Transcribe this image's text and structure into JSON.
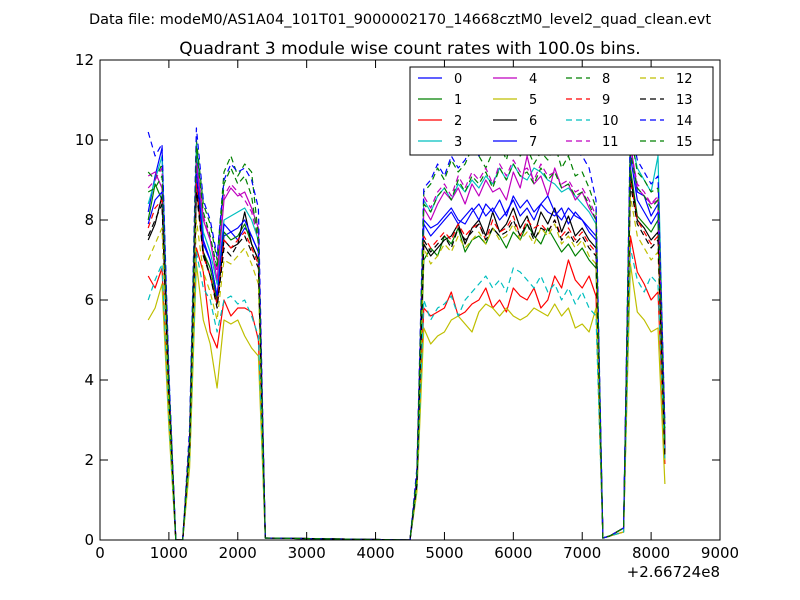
{
  "header": {
    "datafile": "Data file: modeM0/AS1A04_101T01_9000002170_14668cztM0_level2_quad_clean.evt"
  },
  "chart_data": {
    "type": "line",
    "title": "Quadrant 3 module wise count rates with 100.0s bins.",
    "xlabel": "",
    "ylabel": "",
    "x_offset_label": "+2.66724e8",
    "xlim": [
      0,
      9000
    ],
    "ylim": [
      0,
      12
    ],
    "xticks": [
      0,
      1000,
      2000,
      3000,
      4000,
      5000,
      6000,
      7000,
      8000,
      9000
    ],
    "yticks": [
      0,
      2,
      4,
      6,
      8,
      10,
      12
    ],
    "grid": false,
    "legend_position": "top-right",
    "x": [
      700,
      800,
      900,
      1000,
      1100,
      1200,
      1300,
      1400,
      1500,
      1600,
      1700,
      1800,
      1900,
      2000,
      2100,
      2200,
      2300,
      2400,
      4500,
      4600,
      4700,
      4800,
      4900,
      5000,
      5100,
      5200,
      5300,
      5400,
      5500,
      5600,
      5700,
      5800,
      5900,
      6000,
      6100,
      6200,
      6300,
      6400,
      6500,
      6600,
      6700,
      6800,
      6900,
      7000,
      7100,
      7200,
      7300,
      7400,
      7600,
      7700,
      7800,
      7900,
      8000,
      8100,
      8200
    ],
    "series": [
      {
        "name": "0",
        "color": "#0000ff",
        "dashed": false,
        "values": [
          8.2,
          9.1,
          9.8,
          4.0,
          0,
          0,
          2.5,
          9.7,
          7.5,
          7.0,
          6.1,
          7.6,
          7.7,
          7.5,
          7.8,
          7.6,
          7.2,
          0.05,
          0,
          1.5,
          8.0,
          7.8,
          7.9,
          8.1,
          8.3,
          8.0,
          7.9,
          8.2,
          8.4,
          8.1,
          8.3,
          8.0,
          8.2,
          8.5,
          8.1,
          8.3,
          8.0,
          8.4,
          8.2,
          8.1,
          8.3,
          7.9,
          8.2,
          8.0,
          7.8,
          7.6,
          0.05,
          0.1,
          0.3,
          9.9,
          8.7,
          8.6,
          8.1,
          8.4,
          2.5
        ]
      },
      {
        "name": "1",
        "color": "#008000",
        "dashed": false,
        "values": [
          8.0,
          8.9,
          8.5,
          3.6,
          0,
          0,
          2.4,
          8.8,
          7.2,
          6.8,
          6.0,
          7.7,
          7.5,
          7.6,
          7.9,
          7.4,
          7.0,
          0.05,
          0,
          1.4,
          7.0,
          7.3,
          7.1,
          7.6,
          7.4,
          7.8,
          7.2,
          7.5,
          7.6,
          7.4,
          7.8,
          7.6,
          7.3,
          7.7,
          7.5,
          7.9,
          7.6,
          7.4,
          7.8,
          7.5,
          7.2,
          7.4,
          7.1,
          7.3,
          7.0,
          6.8,
          0.05,
          0.1,
          0.3,
          9.3,
          8.1,
          7.9,
          7.7,
          8.0,
          2.2
        ]
      },
      {
        "name": "2",
        "color": "#ff0000",
        "dashed": false,
        "values": [
          6.6,
          6.3,
          6.8,
          3.0,
          0,
          0,
          2.0,
          7.3,
          6.7,
          5.2,
          4.8,
          6.0,
          5.6,
          5.8,
          5.8,
          5.7,
          5.0,
          0.05,
          0,
          1.3,
          5.8,
          5.6,
          5.7,
          5.8,
          6.2,
          5.6,
          5.7,
          5.9,
          6.0,
          6.3,
          5.8,
          6.0,
          5.7,
          6.3,
          6.1,
          6.0,
          6.3,
          5.8,
          6.0,
          6.6,
          6.3,
          7.0,
          6.5,
          6.3,
          6.6,
          6.1,
          0.05,
          0.1,
          0.2,
          7.6,
          6.7,
          6.4,
          6.0,
          6.2,
          1.9
        ]
      },
      {
        "name": "3",
        "color": "#00bfbf",
        "dashed": false,
        "values": [
          8.4,
          9.0,
          9.6,
          4.1,
          0,
          0,
          2.6,
          9.9,
          7.7,
          7.2,
          6.4,
          8.0,
          8.1,
          8.2,
          8.3,
          8.0,
          7.5,
          0.05,
          0,
          1.6,
          8.5,
          8.2,
          8.6,
          8.8,
          8.5,
          8.9,
          8.7,
          9.0,
          8.8,
          9.1,
          8.9,
          9.3,
          9.0,
          9.4,
          9.1,
          9.0,
          9.3,
          9.2,
          9.0,
          8.9,
          8.7,
          8.8,
          8.6,
          8.4,
          8.2,
          7.9,
          0.05,
          0.1,
          0.3,
          10.1,
          9.3,
          9.0,
          8.7,
          9.6,
          2.6
        ]
      },
      {
        "name": "4",
        "color": "#bf00bf",
        "dashed": false,
        "values": [
          9.1,
          9.2,
          8.8,
          3.9,
          0,
          0,
          2.5,
          9.4,
          8.0,
          7.5,
          6.5,
          8.5,
          8.8,
          8.6,
          8.7,
          8.3,
          7.8,
          0.05,
          0,
          1.6,
          8.3,
          8.0,
          8.4,
          8.7,
          8.5,
          8.8,
          8.4,
          8.9,
          8.6,
          9.0,
          8.7,
          8.8,
          8.5,
          9.2,
          8.8,
          9.6,
          8.9,
          9.1,
          8.6,
          9.3,
          8.8,
          8.9,
          8.5,
          8.7,
          8.3,
          8.0,
          0.05,
          0.1,
          0.3,
          9.9,
          8.8,
          8.6,
          8.4,
          8.5,
          2.4
        ]
      },
      {
        "name": "5",
        "color": "#bfbf00",
        "dashed": false,
        "values": [
          5.5,
          5.8,
          6.4,
          2.8,
          0,
          0,
          1.8,
          6.9,
          5.5,
          4.9,
          3.8,
          5.5,
          5.4,
          5.5,
          5.1,
          4.8,
          4.6,
          0.05,
          0,
          1.2,
          5.3,
          4.9,
          5.1,
          5.2,
          5.5,
          5.6,
          5.4,
          5.2,
          5.7,
          5.9,
          5.8,
          5.6,
          5.8,
          5.6,
          5.5,
          5.6,
          5.8,
          5.7,
          5.6,
          5.9,
          5.6,
          5.8,
          5.3,
          5.4,
          5.2,
          5.8,
          0.05,
          0.1,
          0.2,
          6.9,
          5.7,
          5.5,
          5.2,
          5.3,
          1.4
        ]
      },
      {
        "name": "6",
        "color": "#000000",
        "dashed": false,
        "values": [
          7.5,
          7.9,
          8.6,
          3.6,
          0,
          0,
          2.3,
          9.0,
          7.2,
          6.6,
          5.9,
          7.5,
          7.3,
          7.4,
          8.2,
          7.4,
          7.0,
          0.05,
          0,
          1.4,
          7.4,
          7.1,
          7.3,
          7.5,
          7.6,
          7.9,
          7.4,
          7.8,
          8.0,
          7.6,
          8.2,
          7.7,
          7.9,
          8.3,
          7.8,
          8.1,
          7.6,
          8.2,
          7.9,
          8.3,
          7.7,
          8.1,
          7.6,
          7.8,
          7.5,
          7.3,
          0.05,
          0.1,
          0.3,
          9.1,
          8.0,
          7.8,
          7.5,
          7.7,
          2.2
        ]
      },
      {
        "name": "7",
        "color": "#0000ff",
        "dashed": false,
        "values": [
          7.9,
          8.5,
          8.7,
          3.8,
          0,
          0,
          2.4,
          9.2,
          7.4,
          7.0,
          6.1,
          7.9,
          7.7,
          7.8,
          8.0,
          7.6,
          7.2,
          0.05,
          0,
          1.5,
          7.9,
          7.6,
          7.8,
          8.0,
          8.2,
          7.9,
          8.1,
          8.3,
          8.0,
          8.4,
          8.2,
          8.5,
          8.1,
          8.6,
          8.3,
          8.5,
          8.2,
          8.4,
          8.6,
          8.2,
          8.0,
          8.3,
          8.1,
          8.0,
          7.7,
          7.5,
          0.05,
          0.1,
          0.3,
          9.6,
          8.5,
          8.2,
          7.9,
          8.2,
          2.3
        ]
      },
      {
        "name": "8",
        "color": "#008000",
        "dashed": true,
        "values": [
          9.2,
          9.0,
          9.4,
          4.0,
          0,
          0,
          2.6,
          10.0,
          8.4,
          7.9,
          7.0,
          9.2,
          9.6,
          9.1,
          9.4,
          9.2,
          7.6,
          0.05,
          0,
          1.7,
          8.7,
          8.9,
          9.3,
          9.0,
          9.5,
          9.2,
          9.4,
          9.8,
          9.6,
          9.3,
          9.7,
          9.9,
          9.5,
          10.2,
          9.6,
          9.8,
          9.4,
          9.7,
          9.5,
          9.9,
          9.3,
          9.6,
          9.1,
          9.2,
          8.8,
          8.3,
          0.05,
          0.1,
          0.3,
          10.2,
          9.2,
          9.0,
          8.7,
          8.8,
          2.8
        ]
      },
      {
        "name": "9",
        "color": "#ff0000",
        "dashed": true,
        "values": [
          7.8,
          8.3,
          8.5,
          3.7,
          0,
          0,
          2.3,
          8.9,
          7.1,
          6.6,
          5.9,
          7.5,
          7.3,
          7.5,
          7.7,
          7.3,
          6.9,
          0.05,
          0,
          1.4,
          7.6,
          7.3,
          7.5,
          7.7,
          7.5,
          7.9,
          7.6,
          7.8,
          7.9,
          7.5,
          8.0,
          7.7,
          7.8,
          8.1,
          7.6,
          8.0,
          7.8,
          7.9,
          7.7,
          8.0,
          7.6,
          7.8,
          7.5,
          7.7,
          7.4,
          7.2,
          0.05,
          0.1,
          0.3,
          9.0,
          8.0,
          7.7,
          7.4,
          7.6,
          2.2
        ]
      },
      {
        "name": "10",
        "color": "#00bfbf",
        "dashed": true,
        "values": [
          6.0,
          6.5,
          6.9,
          3.0,
          0,
          0,
          2.0,
          7.2,
          6.3,
          6.0,
          5.2,
          6.0,
          6.1,
          5.9,
          6.0,
          5.6,
          5.1,
          0.05,
          0,
          1.3,
          6.0,
          5.5,
          5.8,
          5.9,
          6.1,
          5.6,
          6.0,
          6.2,
          6.4,
          6.6,
          6.3,
          6.5,
          6.2,
          6.8,
          6.7,
          6.5,
          6.3,
          6.6,
          6.2,
          6.4,
          6.0,
          6.3,
          5.9,
          6.2,
          5.8,
          5.6,
          0.05,
          0.1,
          0.2,
          7.3,
          6.5,
          6.2,
          6.6,
          6.4,
          2.0
        ]
      },
      {
        "name": "11",
        "color": "#bf00bf",
        "dashed": true,
        "values": [
          8.8,
          9.0,
          9.3,
          4.0,
          0,
          0,
          2.6,
          9.5,
          8.1,
          7.5,
          6.7,
          8.6,
          8.9,
          8.7,
          8.5,
          8.2,
          7.5,
          0.05,
          0,
          1.6,
          8.6,
          8.3,
          8.7,
          8.9,
          8.6,
          9.1,
          8.8,
          9.2,
          9.0,
          9.3,
          8.9,
          9.4,
          9.1,
          9.5,
          9.2,
          9.3,
          9.0,
          9.4,
          9.1,
          9.2,
          8.9,
          9.0,
          8.7,
          8.8,
          8.5,
          8.1,
          0.05,
          0.1,
          0.3,
          9.8,
          8.9,
          8.7,
          8.4,
          8.6,
          2.5
        ]
      },
      {
        "name": "12",
        "color": "#bfbf00",
        "dashed": true,
        "values": [
          7.0,
          7.4,
          7.8,
          3.3,
          0,
          0,
          2.1,
          8.0,
          6.7,
          6.2,
          5.5,
          7.0,
          6.9,
          7.1,
          7.3,
          6.9,
          6.4,
          0.05,
          0,
          1.4,
          7.3,
          6.9,
          7.1,
          7.4,
          7.2,
          7.6,
          7.3,
          7.5,
          7.7,
          7.4,
          7.8,
          7.5,
          7.6,
          7.9,
          7.5,
          7.7,
          7.4,
          7.8,
          7.6,
          7.9,
          7.4,
          7.6,
          7.3,
          7.5,
          7.1,
          6.9,
          0.05,
          0.1,
          0.3,
          8.6,
          7.6,
          7.3,
          7.0,
          7.2,
          2.0
        ]
      },
      {
        "name": "13",
        "color": "#000000",
        "dashed": true,
        "values": [
          7.6,
          8.0,
          8.4,
          3.6,
          0,
          0,
          2.3,
          8.7,
          7.1,
          6.6,
          5.8,
          7.3,
          7.1,
          7.4,
          7.6,
          7.2,
          6.8,
          0.05,
          0,
          1.4,
          7.5,
          7.2,
          7.4,
          7.6,
          7.3,
          7.8,
          7.5,
          7.7,
          7.9,
          7.5,
          7.8,
          7.6,
          7.7,
          8.0,
          7.6,
          7.9,
          7.5,
          7.8,
          7.7,
          8.0,
          7.5,
          7.7,
          7.4,
          7.6,
          7.3,
          7.1,
          0.05,
          0.1,
          0.3,
          8.9,
          7.9,
          7.6,
          7.3,
          7.5,
          2.1
        ]
      },
      {
        "name": "14",
        "color": "#0000ff",
        "dashed": true,
        "values": [
          10.2,
          9.6,
          9.9,
          4.2,
          0,
          0,
          2.8,
          10.3,
          8.5,
          8.0,
          7.1,
          9.0,
          9.4,
          9.2,
          9.3,
          9.0,
          8.3,
          0.05,
          0,
          1.8,
          8.8,
          9.0,
          9.4,
          9.1,
          9.6,
          9.3,
          9.5,
          9.9,
          9.6,
          9.8,
          10.0,
          9.7,
          10.1,
          9.9,
          10.2,
          9.8,
          10.4,
          10.0,
          10.3,
          10.7,
          10.1,
          9.9,
          9.7,
          9.6,
          9.3,
          8.5,
          0.05,
          0.1,
          0.3,
          10.4,
          9.5,
          9.2,
          8.9,
          9.1,
          2.9
        ]
      },
      {
        "name": "15",
        "color": "#008000",
        "dashed": true,
        "values": [
          8.7,
          8.8,
          9.1,
          3.9,
          0,
          0,
          2.5,
          9.8,
          8.2,
          7.6,
          6.8,
          8.9,
          9.3,
          8.9,
          9.1,
          8.6,
          7.4,
          0.05,
          0,
          1.6,
          8.4,
          8.2,
          8.6,
          8.8,
          8.5,
          9.0,
          8.7,
          9.1,
          8.9,
          9.2,
          8.8,
          9.3,
          9.0,
          9.4,
          9.1,
          9.2,
          8.9,
          9.3,
          9.0,
          9.2,
          8.8,
          8.9,
          8.6,
          8.7,
          8.4,
          8.0,
          0.05,
          0.1,
          0.3,
          9.7,
          8.8,
          8.6,
          8.3,
          8.5,
          2.4
        ]
      }
    ]
  }
}
